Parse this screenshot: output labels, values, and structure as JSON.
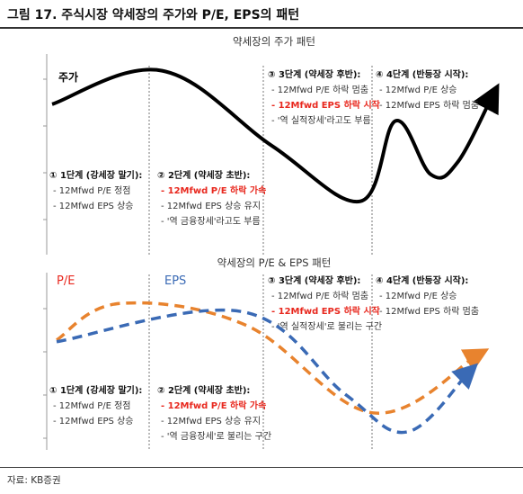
{
  "figure_title": "그림 17. 주식시장 약세장의 주가와 P/E, EPS의 패턴",
  "source": "자료: KB증권",
  "colors": {
    "price_line": "#000000",
    "pe_line": "#e8832e",
    "eps_line": "#3a6ab5",
    "highlight_text": "#e8281e",
    "axis": "#999999",
    "divider": "#555555"
  },
  "chart_data": [
    {
      "type": "line",
      "title": "약세장의 주가 패턴",
      "xlabel": "",
      "ylabel": "",
      "series": [
        {
          "name": "주가",
          "x": [
            0,
            0.25,
            0.5,
            0.7,
            0.78,
            0.86,
            0.92,
            1.0
          ],
          "values": [
            70,
            90,
            45,
            12,
            60,
            28,
            35,
            75
          ]
        }
      ],
      "stages": [
        {
          "title": "① 1단계 (강세장 말기):",
          "lines": [
            {
              "text": "- 12Mfwd P/E 정점",
              "highlight": false
            },
            {
              "text": "- 12Mfwd EPS 상승",
              "highlight": false
            }
          ]
        },
        {
          "title": "② 2단계 (약세장 초반):",
          "lines": [
            {
              "text": "- 12Mfwd P/E 하락 가속",
              "highlight": true
            },
            {
              "text": "- 12Mfwd EPS 상승 유지",
              "highlight": false
            },
            {
              "text": "- '역 금융장세'라고도 부름",
              "highlight": false
            }
          ]
        },
        {
          "title": "③ 3단계 (약세장 후반):",
          "lines": [
            {
              "text": "- 12Mfwd P/E 하락 멈춤",
              "highlight": false
            },
            {
              "text": "- 12Mfwd EPS 하락 시작",
              "highlight": true
            },
            {
              "text": "- '역 실적장세'라고도 부름",
              "highlight": false
            }
          ]
        },
        {
          "title": "④ 4단계 (반등장 시작):",
          "lines": [
            {
              "text": "- 12Mfwd P/E 상승",
              "highlight": false
            },
            {
              "text": "- 12Mfwd EPS 하락 멈춤",
              "highlight": false
            }
          ]
        }
      ]
    },
    {
      "type": "line",
      "title": "약세장의 P/E & EPS 패턴",
      "xlabel": "",
      "ylabel": "",
      "series": [
        {
          "name": "P/E",
          "x": [
            0,
            0.15,
            0.45,
            0.75,
            1.0
          ],
          "values": [
            60,
            85,
            70,
            10,
            50
          ]
        },
        {
          "name": "EPS",
          "x": [
            0,
            0.45,
            0.7,
            0.85,
            1.0
          ],
          "values": [
            60,
            80,
            25,
            0,
            40
          ]
        }
      ],
      "stages": [
        {
          "title": "① 1단계 (강세장 말기):",
          "lines": [
            {
              "text": "- 12Mfwd P/E 정점",
              "highlight": false
            },
            {
              "text": "- 12Mfwd EPS 상승",
              "highlight": false
            }
          ]
        },
        {
          "title": "② 2단계 (약세장 초반):",
          "lines": [
            {
              "text": "- 12Mfwd P/E 하락 가속",
              "highlight": true
            },
            {
              "text": "- 12Mfwd EPS 상승 유지",
              "highlight": false
            },
            {
              "text": "- '역 금융장세'로 불리는 구간",
              "highlight": false
            }
          ]
        },
        {
          "title": "③ 3단계 (약세장 후반):",
          "lines": [
            {
              "text": "- 12Mfwd P/E 하락 멈춤",
              "highlight": false
            },
            {
              "text": "- 12Mfwd EPS 하락 시작",
              "highlight": true
            },
            {
              "text": "- '역 실적장세'로 불리는 구간",
              "highlight": false
            }
          ]
        },
        {
          "title": "④ 4단계 (반등장 시작):",
          "lines": [
            {
              "text": "- 12Mfwd P/E 상승",
              "highlight": false
            },
            {
              "text": "- 12Mfwd EPS 하락 멈춤",
              "highlight": false
            }
          ]
        }
      ]
    }
  ]
}
